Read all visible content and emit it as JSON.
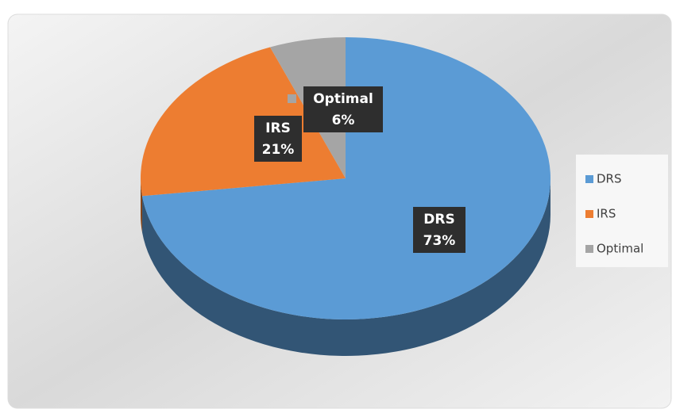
{
  "chart_data": {
    "type": "pie",
    "categories": [
      "DRS",
      "IRS",
      "Optimal"
    ],
    "values": [
      73,
      21,
      6
    ],
    "value_labels": [
      "73%",
      "21%",
      "6%"
    ],
    "colors": [
      "#5b9bd5",
      "#ed7d31",
      "#a5a5a5"
    ],
    "legend": "right"
  }
}
